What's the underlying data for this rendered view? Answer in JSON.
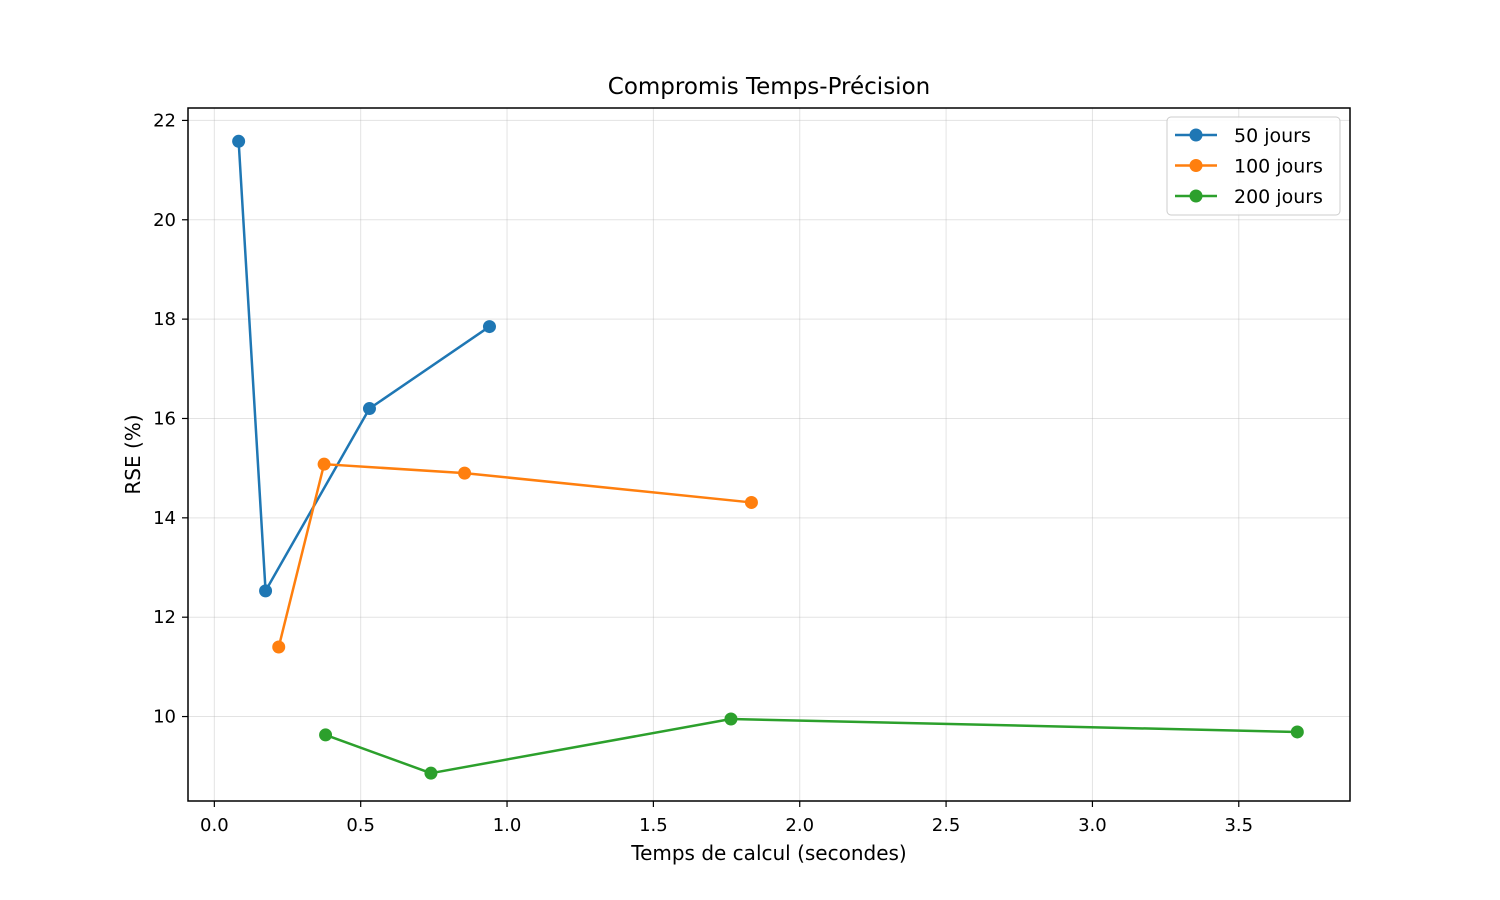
{
  "chart_data": {
    "type": "line",
    "title": "Compromis Temps-Précision",
    "xlabel": "Temps de calcul (secondes)",
    "ylabel": "RSE (%)",
    "xlim": [
      -0.09,
      3.88
    ],
    "ylim": [
      8.3,
      22.25
    ],
    "x_ticks": [
      0.0,
      0.5,
      1.0,
      1.5,
      2.0,
      2.5,
      3.0,
      3.5
    ],
    "x_tick_labels": [
      "0.0",
      "0.5",
      "1.0",
      "1.5",
      "2.0",
      "2.5",
      "3.0",
      "3.5"
    ],
    "y_ticks": [
      10,
      12,
      14,
      16,
      18,
      20,
      22
    ],
    "y_tick_labels": [
      "10",
      "12",
      "14",
      "16",
      "18",
      "20",
      "22"
    ],
    "grid": true,
    "legend_position": "top-right",
    "marker": "circle",
    "series": [
      {
        "name": "50 jours",
        "color": "#1f77b4",
        "points": [
          {
            "x": 0.083,
            "y": 21.58
          },
          {
            "x": 0.175,
            "y": 12.53
          },
          {
            "x": 0.53,
            "y": 16.2
          },
          {
            "x": 0.94,
            "y": 17.85
          }
        ]
      },
      {
        "name": "100 jours",
        "color": "#ff7f0e",
        "points": [
          {
            "x": 0.22,
            "y": 11.4
          },
          {
            "x": 0.375,
            "y": 15.08
          },
          {
            "x": 0.855,
            "y": 14.9
          },
          {
            "x": 1.835,
            "y": 14.31
          }
        ]
      },
      {
        "name": "200 jours",
        "color": "#2ca02c",
        "points": [
          {
            "x": 0.38,
            "y": 9.63
          },
          {
            "x": 0.74,
            "y": 8.86
          },
          {
            "x": 1.765,
            "y": 9.95
          },
          {
            "x": 3.7,
            "y": 9.69
          }
        ]
      }
    ]
  }
}
